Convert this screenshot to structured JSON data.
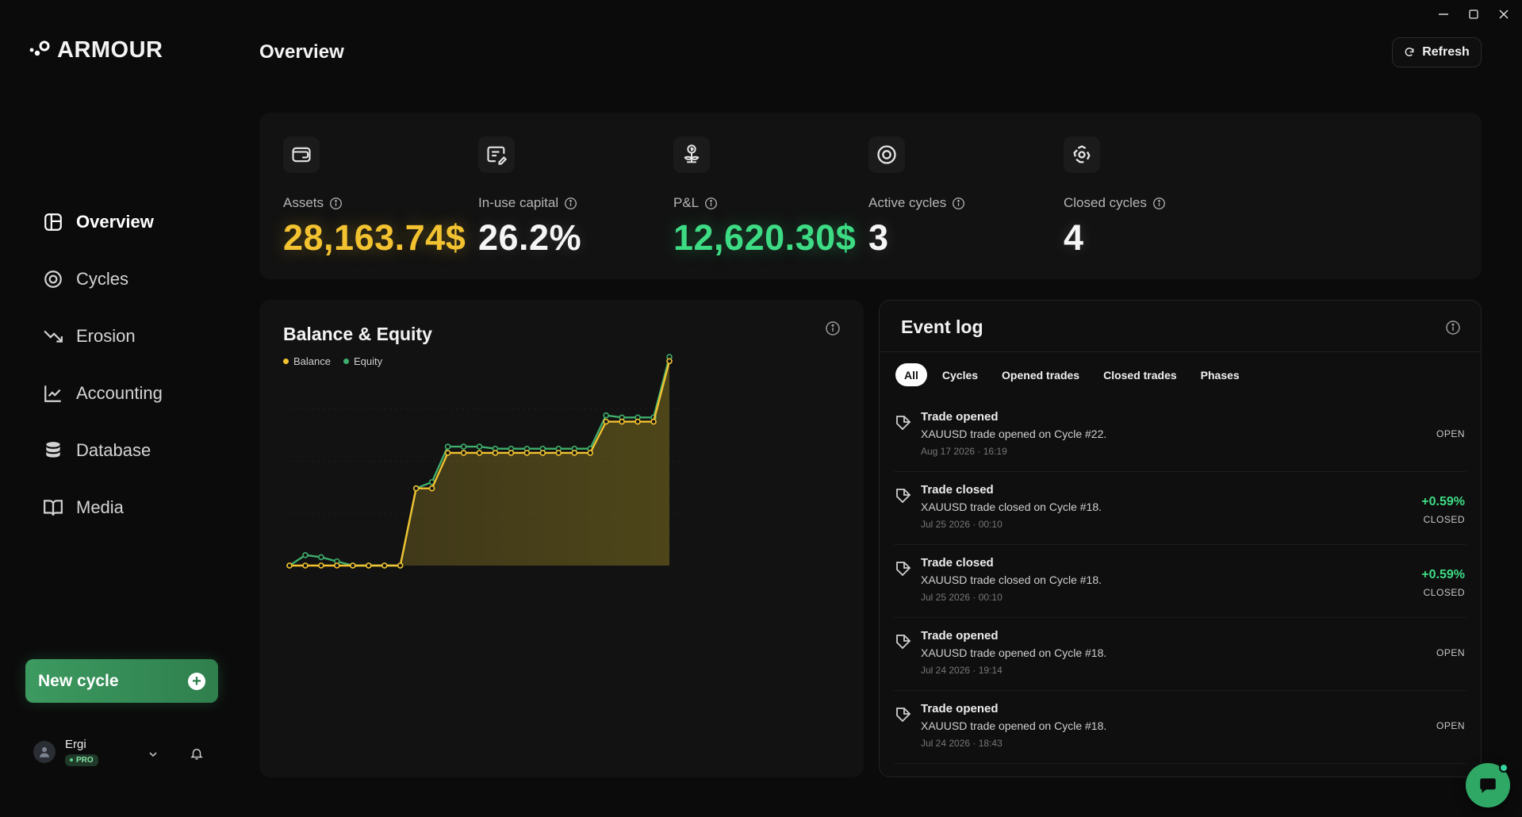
{
  "app": {
    "logo_text": "ARMOUR",
    "page_title": "Overview",
    "refresh_label": "Refresh"
  },
  "sidebar": {
    "items": [
      {
        "label": "Overview",
        "icon": "layout-icon",
        "active": true
      },
      {
        "label": "Cycles",
        "icon": "target-icon",
        "active": false
      },
      {
        "label": "Erosion",
        "icon": "trend-down-icon",
        "active": false
      },
      {
        "label": "Accounting",
        "icon": "chart-line-icon",
        "active": false
      },
      {
        "label": "Database",
        "icon": "database-icon",
        "active": false
      },
      {
        "label": "Media",
        "icon": "book-icon",
        "active": false
      }
    ],
    "new_cycle_label": "New cycle",
    "user": {
      "name": "Ergi",
      "badge": "PRO"
    }
  },
  "stats": [
    {
      "label": "Assets",
      "value": "28,163.74$",
      "icon": "wallet-icon",
      "tone": "gold"
    },
    {
      "label": "In-use capital",
      "value": "26.2%",
      "icon": "edit-card-icon",
      "tone": "white"
    },
    {
      "label": "P&L",
      "value": "12,620.30$",
      "icon": "money-plant-icon",
      "tone": "green"
    },
    {
      "label": "Active cycles",
      "value": "3",
      "icon": "target-icon",
      "tone": "white"
    },
    {
      "label": "Closed cycles",
      "value": "4",
      "icon": "recycle-icon",
      "tone": "white"
    }
  ],
  "balance": {
    "title": "Balance & Equity",
    "legend": [
      {
        "name": "Balance",
        "color": "#f2c230"
      },
      {
        "name": "Equity",
        "color": "#3fae6c"
      }
    ]
  },
  "chart_data": {
    "type": "line",
    "title": "Balance & Equity",
    "xlabel": "",
    "ylabel": "",
    "grid": true,
    "legend_placement": "top-left",
    "series": [
      {
        "name": "Balance",
        "values": [
          0.0,
          0.0,
          0.0,
          0.0,
          0.0,
          0.0,
          0.0,
          0.0,
          0.37,
          0.37,
          0.54,
          0.54,
          0.54,
          0.54,
          0.54,
          0.54,
          0.54,
          0.54,
          0.54,
          0.54,
          0.69,
          0.69,
          0.69,
          0.69,
          0.98
        ]
      },
      {
        "name": "Equity",
        "values": [
          0.0,
          0.05,
          0.04,
          0.02,
          0.0,
          0.0,
          0.0,
          0.0,
          0.37,
          0.4,
          0.57,
          0.57,
          0.57,
          0.56,
          0.56,
          0.56,
          0.56,
          0.56,
          0.56,
          0.56,
          0.72,
          0.71,
          0.71,
          0.71,
          1.0
        ]
      }
    ]
  },
  "event_log": {
    "title": "Event log",
    "filters": [
      "All",
      "Cycles",
      "Opened trades",
      "Closed trades",
      "Phases"
    ],
    "items": [
      {
        "title": "Trade opened",
        "desc": "XAUUSD trade opened on Cycle #22.",
        "time": "Aug 17 2026 · 16:19",
        "pct": "",
        "status": "OPEN"
      },
      {
        "title": "Trade closed",
        "desc": "XAUUSD trade closed on Cycle #18.",
        "time": "Jul 25 2026 · 00:10",
        "pct": "+0.59%",
        "status": "CLOSED"
      },
      {
        "title": "Trade closed",
        "desc": "XAUUSD trade closed on Cycle #18.",
        "time": "Jul 25 2026 · 00:10",
        "pct": "+0.59%",
        "status": "CLOSED"
      },
      {
        "title": "Trade opened",
        "desc": "XAUUSD trade opened on Cycle #18.",
        "time": "Jul 24 2026 · 19:14",
        "pct": "",
        "status": "OPEN"
      },
      {
        "title": "Trade opened",
        "desc": "XAUUSD trade opened on Cycle #18.",
        "time": "Jul 24 2026 · 18:43",
        "pct": "",
        "status": "OPEN"
      }
    ]
  }
}
